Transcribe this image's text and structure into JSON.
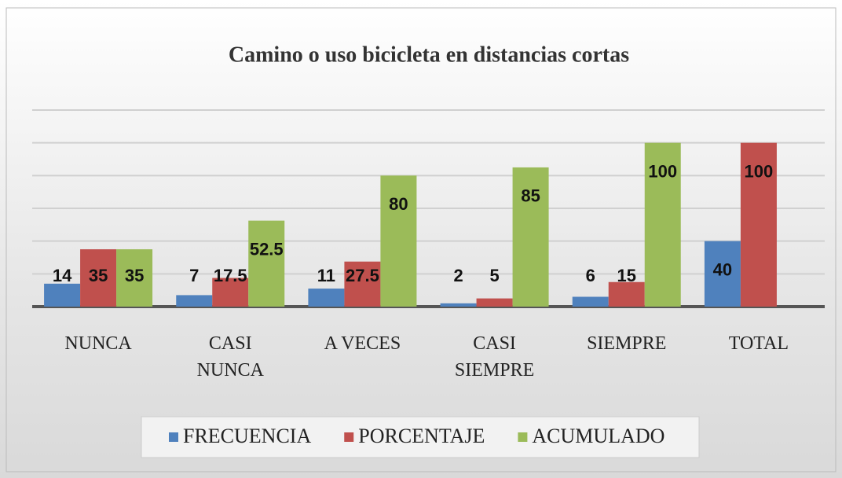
{
  "chart_data": {
    "type": "bar",
    "title": "Camino o uso bicicleta en distancias cortas",
    "categories": [
      "NUNCA",
      "CASI NUNCA",
      "A VECES",
      "CASI SIEMPRE",
      "SIEMPRE",
      "TOTAL"
    ],
    "series": [
      {
        "name": "FRECUENCIA",
        "color": "#4f81bd",
        "values": [
          14,
          7,
          11,
          2,
          6,
          40
        ]
      },
      {
        "name": "PORCENTAJE",
        "color": "#c0504d",
        "values": [
          35,
          17.5,
          27.5,
          5,
          15,
          100
        ]
      },
      {
        "name": "ACUMULADO",
        "color": "#9bbb59",
        "values": [
          35,
          52.5,
          80,
          85,
          100,
          null
        ]
      }
    ],
    "ylim": [
      0,
      120
    ],
    "yticks": [
      0,
      20,
      40,
      60,
      80,
      100,
      120
    ],
    "grid": true,
    "legend": "bottom"
  }
}
